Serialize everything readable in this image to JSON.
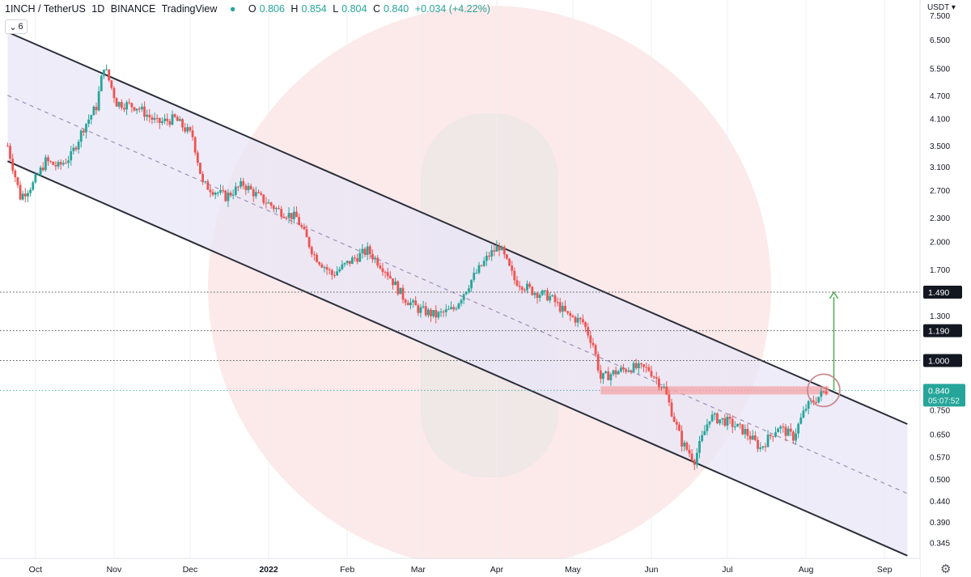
{
  "header": {
    "symbol": "1INCH / TetherUS",
    "interval": "1D",
    "exchange": "BINANCE",
    "source": "TradingView",
    "indicator_count": "6",
    "currency": "USDT",
    "ohlc": {
      "open_key": "O",
      "open": "0.806",
      "high_key": "H",
      "high": "0.854",
      "low_key": "L",
      "low": "0.804",
      "close_key": "C",
      "close": "0.840",
      "change": "+0.034 (+4.22%)"
    }
  },
  "colors": {
    "up": "#26a69a",
    "down": "#ef5350",
    "channel_line": "#2a2e39",
    "channel_fill": "#e8e6f7",
    "midline": "#9c8fb5",
    "resistance_zone": "#f4a5a7",
    "target_arrow": "#4caf50",
    "circle": "#c98a8f",
    "watermark": "#f9d9d9"
  },
  "chart_data": {
    "type": "candlestick",
    "title": "1INCH / TetherUS",
    "scale": "log",
    "y_tick_labels": [
      "7.500",
      "6.500",
      "5.500",
      "4.700",
      "4.100",
      "3.500",
      "3.100",
      "2.700",
      "2.300",
      "2.000",
      "1.700",
      "1.300",
      "0.750",
      "0.650",
      "0.570",
      "0.500",
      "0.440",
      "0.390",
      "0.345"
    ],
    "x_tick_labels": [
      "Oct",
      "Nov",
      "Dec",
      "2022",
      "Feb",
      "Mar",
      "Apr",
      "May",
      "Jun",
      "Jul",
      "Aug",
      "Sep"
    ],
    "ylim": [
      0.315,
      8.2
    ],
    "horizontal_levels": [
      {
        "value": 1.49,
        "label": "1.490"
      },
      {
        "value": 1.19,
        "label": "1.190"
      },
      {
        "value": 1.0,
        "label": "1.000"
      }
    ],
    "last_price": {
      "value": 0.84,
      "label": "0.840",
      "countdown": "05:07:52"
    },
    "price_path": [
      [
        "2021-09-20",
        3.5
      ],
      [
        "2021-09-25",
        2.6
      ],
      [
        "2021-09-30",
        2.8
      ],
      [
        "2021-10-05",
        3.2
      ],
      [
        "2021-10-10",
        3.1
      ],
      [
        "2021-10-15",
        3.3
      ],
      [
        "2021-10-20",
        3.9
      ],
      [
        "2021-10-25",
        4.4
      ],
      [
        "2021-10-28",
        5.6
      ],
      [
        "2021-11-02",
        4.5
      ],
      [
        "2021-11-10",
        4.4
      ],
      [
        "2021-11-18",
        4.0
      ],
      [
        "2021-11-25",
        4.1
      ],
      [
        "2021-12-02",
        3.7
      ],
      [
        "2021-12-06",
        2.8
      ],
      [
        "2021-12-15",
        2.6
      ],
      [
        "2021-12-22",
        2.8
      ],
      [
        "2021-12-28",
        2.6
      ],
      [
        "2022-01-05",
        2.4
      ],
      [
        "2022-01-12",
        2.3
      ],
      [
        "2022-01-19",
        1.85
      ],
      [
        "2022-01-26",
        1.65
      ],
      [
        "2022-02-03",
        1.8
      ],
      [
        "2022-02-09",
        1.9
      ],
      [
        "2022-02-16",
        1.7
      ],
      [
        "2022-02-23",
        1.45
      ],
      [
        "2022-03-01",
        1.35
      ],
      [
        "2022-03-08",
        1.3
      ],
      [
        "2022-03-15",
        1.35
      ],
      [
        "2022-03-22",
        1.6
      ],
      [
        "2022-03-29",
        1.85
      ],
      [
        "2022-04-02",
        1.95
      ],
      [
        "2022-04-08",
        1.6
      ],
      [
        "2022-04-15",
        1.5
      ],
      [
        "2022-04-22",
        1.45
      ],
      [
        "2022-04-29",
        1.3
      ],
      [
        "2022-05-05",
        1.25
      ],
      [
        "2022-05-09",
        1.1
      ],
      [
        "2022-05-12",
        0.9
      ],
      [
        "2022-05-17",
        0.93
      ],
      [
        "2022-05-24",
        0.96
      ],
      [
        "2022-05-31",
        0.95
      ],
      [
        "2022-06-06",
        0.85
      ],
      [
        "2022-06-13",
        0.62
      ],
      [
        "2022-06-18",
        0.56
      ],
      [
        "2022-06-24",
        0.72
      ],
      [
        "2022-07-01",
        0.7
      ],
      [
        "2022-07-08",
        0.66
      ],
      [
        "2022-07-14",
        0.6
      ],
      [
        "2022-07-21",
        0.68
      ],
      [
        "2022-07-27",
        0.64
      ],
      [
        "2022-08-01",
        0.76
      ],
      [
        "2022-08-05",
        0.8
      ],
      [
        "2022-08-09",
        0.84
      ]
    ],
    "channel": {
      "upper": [
        [
          "2021-09-20",
          6.8
        ],
        [
          "2022-09-10",
          0.69
        ]
      ],
      "lower": [
        [
          "2021-09-20",
          3.2
        ],
        [
          "2022-09-10",
          0.32
        ]
      ],
      "mid": [
        [
          "2021-09-20",
          4.7
        ],
        [
          "2022-09-10",
          0.46
        ]
      ]
    },
    "resistance_zone": {
      "from": "2022-05-12",
      "to": "2022-08-10",
      "low": 0.82,
      "high": 0.86
    },
    "target_arrow": {
      "date": "2022-08-12",
      "from": 0.84,
      "to": 1.49
    }
  }
}
